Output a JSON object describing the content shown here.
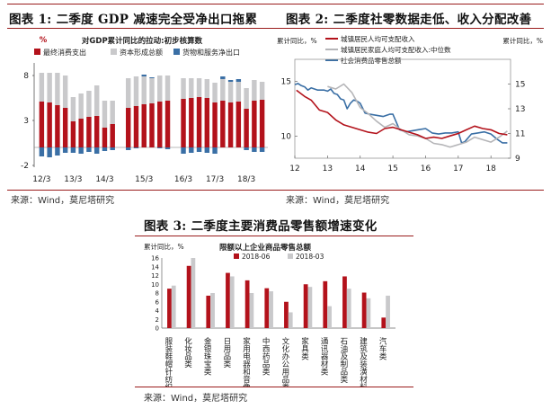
{
  "figure1": {
    "title": "图表 1:  二季度 GDP 减速完全受净出口拖累",
    "source": "来源：Wind，莫尼塔研究"
  },
  "figure2": {
    "title": "图表 2:  二季度社零数据走低、收入分配改善",
    "source": "来源：Wind，莫尼塔研究"
  },
  "figure3": {
    "title": "图表 3:  二季度主要消费品零售额增速变化",
    "source": "来源：Wind，莫尼塔研究"
  },
  "chart_data": [
    {
      "type": "bar",
      "stacked": true,
      "title": "对GDP累计同比的拉动:初步核算数",
      "ylabel": "%",
      "ylim": [
        -2,
        9
      ],
      "yticks": [
        -2,
        3,
        8
      ],
      "xticks": [
        "12/3",
        "13/3",
        "14/3",
        "15/3",
        "16/3",
        "17/3",
        "18/3"
      ],
      "gaps_after_index": [
        9,
        15
      ],
      "legend_position": "top",
      "series": [
        {
          "name": "最终消费支出",
          "color": "#b3121b",
          "values": [
            5.1,
            5.0,
            4.7,
            4.4,
            2.9,
            3.2,
            3.4,
            3.5,
            2.2,
            2.6,
            4.4,
            4.6,
            4.8,
            4.9,
            5.1,
            5.2,
            5.4,
            5.5,
            5.6,
            5.5,
            5.0,
            5.2,
            5.0,
            5.1,
            4.3,
            5.2,
            5.3
          ]
        },
        {
          "name": "资本形成总额",
          "color": "#c9c9cb",
          "values": [
            3.2,
            3.3,
            3.6,
            3.6,
            2.7,
            2.8,
            2.9,
            3.4,
            3.0,
            2.6,
            3.3,
            3.3,
            3.1,
            2.8,
            2.9,
            2.8,
            2.3,
            2.2,
            2.1,
            2.1,
            2.2,
            2.4,
            2.3,
            2.2,
            2.3,
            2.3,
            2.0
          ]
        },
        {
          "name": "货物和服务净出口",
          "color": "#3a6fa5",
          "values": [
            -1.0,
            -1.1,
            -0.9,
            -0.6,
            -0.6,
            -0.7,
            -0.5,
            -0.7,
            -0.4,
            -0.3,
            -0.3,
            -0.1,
            0.2,
            0.1,
            -0.1,
            -0.2,
            -0.7,
            -0.6,
            -0.5,
            -0.6,
            -0.7,
            0.3,
            0.2,
            0.3,
            -0.3,
            -0.5,
            -0.5
          ]
        }
      ]
    },
    {
      "type": "line",
      "ylabel_left": "累计同比，%",
      "ylabel_right": "累计同比，%",
      "ylim_left": [
        8,
        17
      ],
      "yticks_left": [
        10,
        15
      ],
      "ylim_right": [
        9,
        17
      ],
      "yticks_right": [
        9,
        11,
        13,
        15
      ],
      "xlim": [
        2012.0,
        2018.6
      ],
      "xticks": [
        "12",
        "13",
        "14",
        "15",
        "16",
        "17",
        "18"
      ],
      "legend_position": "top",
      "series": [
        {
          "name": "城镇居民人均可支配收入",
          "color": "#b3121b",
          "axis": "right",
          "x": [
            2012.05,
            2012.3,
            2012.5,
            2012.75,
            2013.0,
            2013.25,
            2013.5,
            2013.75,
            2014.0,
            2014.25,
            2014.5,
            2014.75,
            2015.0,
            2015.25,
            2015.5,
            2015.75,
            2016.0,
            2016.25,
            2016.5,
            2016.75,
            2017.0,
            2017.25,
            2017.5,
            2017.75,
            2018.0,
            2018.25,
            2018.5
          ],
          "y": [
            14.5,
            14.0,
            13.7,
            12.9,
            12.7,
            12.1,
            11.7,
            11.5,
            11.3,
            11.1,
            11.0,
            11.4,
            11.5,
            11.3,
            11.1,
            10.9,
            10.6,
            10.7,
            10.6,
            10.8,
            11.0,
            11.3,
            11.6,
            11.4,
            11.3,
            11.0,
            10.9
          ]
        },
        {
          "name": "城镇居民家庭人均可支配收入:中位数",
          "color": "#b5b5b8",
          "axis": "right",
          "x": [
            2013.0,
            2013.25,
            2013.5,
            2013.75,
            2014.0,
            2014.25,
            2014.5,
            2014.75,
            2015.0,
            2015.25,
            2015.5,
            2015.75,
            2016.0,
            2016.25,
            2016.5,
            2016.75,
            2017.0,
            2017.25,
            2017.5,
            2017.75,
            2018.0,
            2018.25,
            2018.5
          ],
          "y": [
            14.8,
            14.6,
            15.0,
            14.3,
            13.1,
            12.6,
            12.0,
            11.5,
            11.8,
            11.3,
            10.9,
            10.8,
            10.6,
            10.2,
            10.1,
            9.9,
            10.1,
            10.3,
            10.7,
            10.5,
            10.3,
            10.7,
            11.2
          ]
        },
        {
          "name": "社会消费品零售总额",
          "color": "#3a6fa5",
          "axis": "left",
          "x": [
            2012.0,
            2012.1,
            2012.2,
            2012.3,
            2012.4,
            2012.5,
            2012.6,
            2012.7,
            2012.8,
            2012.9,
            2013.0,
            2013.1,
            2013.2,
            2013.3,
            2013.4,
            2013.5,
            2013.6,
            2013.7,
            2013.8,
            2013.9,
            2014.0,
            2014.15,
            2014.3,
            2014.5,
            2014.7,
            2014.9,
            2015.0,
            2015.2,
            2015.4,
            2015.6,
            2015.8,
            2016.0,
            2016.2,
            2016.4,
            2016.6,
            2016.8,
            2017.0,
            2017.1,
            2017.2,
            2017.4,
            2017.6,
            2017.8,
            2018.0,
            2018.2,
            2018.35,
            2018.5
          ],
          "y": [
            14.7,
            14.8,
            14.6,
            14.5,
            14.2,
            14.4,
            14.3,
            14.2,
            14.2,
            14.2,
            14.1,
            14.3,
            13.9,
            13.8,
            13.4,
            13.3,
            12.5,
            13.0,
            13.3,
            13.2,
            13.0,
            12.1,
            12.0,
            11.9,
            11.8,
            12.0,
            12.0,
            10.6,
            10.4,
            10.5,
            10.6,
            10.7,
            10.3,
            10.2,
            10.3,
            10.3,
            10.4,
            9.4,
            9.5,
            10.2,
            10.3,
            10.4,
            10.2,
            9.7,
            9.4,
            9.4
          ]
        }
      ]
    },
    {
      "type": "bar",
      "title": "限额以上企业商品零售总额",
      "ylabel": "累计同比，%",
      "ylim": [
        0,
        16
      ],
      "yticks": [
        0,
        2,
        4,
        6,
        8,
        10,
        12,
        14,
        16
      ],
      "legend_position": "top",
      "categories": [
        "服装鞋帽针纺织品类",
        "化妆品类",
        "金银珠宝类",
        "日用品类",
        "家用电器和音像器材类",
        "中西药品类",
        "文化办公用品类",
        "家具类",
        "通讯器材类",
        "石油及制品类",
        "建筑及装潢材料类",
        "汽车类"
      ],
      "series": [
        {
          "name": "2018-06",
          "color": "#b3121b",
          "values": [
            9.0,
            14.2,
            7.4,
            12.6,
            10.9,
            9.1,
            6.0,
            10.0,
            10.7,
            11.8,
            8.1,
            2.4
          ]
        },
        {
          "name": "2018-03",
          "color": "#c9c9cb",
          "values": [
            9.7,
            16.0,
            8.0,
            11.8,
            8.0,
            8.4,
            3.6,
            9.4,
            5.0,
            9.0,
            6.8,
            7.4
          ]
        }
      ]
    }
  ]
}
